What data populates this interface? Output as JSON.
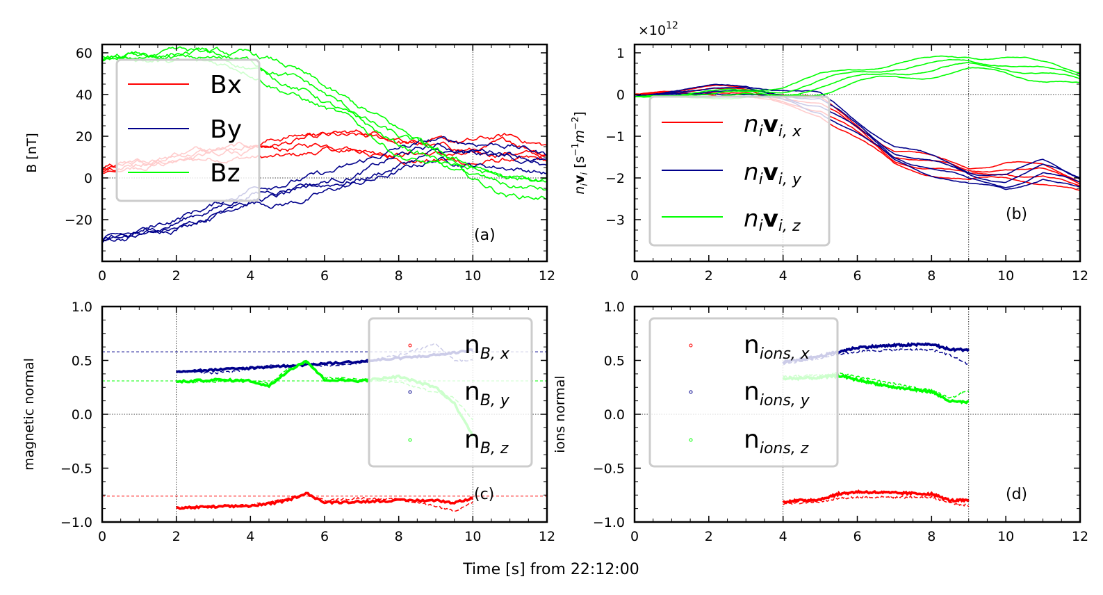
{
  "figure": {
    "xlabel": "Time [s] from 22:12:00",
    "colors": {
      "x": "#ff0000",
      "y": "#00008b",
      "z": "#00ff00"
    }
  },
  "chart_data": [
    {
      "id": "a",
      "type": "line",
      "panel_label": "(a)",
      "ylabel": "B [nT]",
      "xlim": [
        0,
        12
      ],
      "ylim": [
        -40,
        64
      ],
      "xticks": [
        0,
        2,
        4,
        6,
        8,
        10,
        12
      ],
      "yticks": [
        -20,
        0,
        20,
        40,
        60
      ],
      "xtick_labels": [
        "0",
        "2",
        "4",
        "6",
        "8",
        "10",
        "12"
      ],
      "ytick_labels": [
        "−20",
        "0",
        "20",
        "40",
        "60"
      ],
      "grid_x": [
        10
      ],
      "grid_y": [
        0
      ],
      "legend": {
        "position": "upper-left",
        "entries": [
          "Bx",
          "By",
          "Bz"
        ]
      },
      "series": [
        {
          "name": "Bx",
          "color": "#ff0000",
          "copies": 4,
          "x": [
            0,
            1,
            2,
            3,
            4,
            5,
            6,
            7,
            8,
            9,
            10,
            11,
            12
          ],
          "y": [
            3,
            7,
            10,
            12,
            14,
            15,
            17,
            17,
            15,
            13,
            12,
            14,
            11
          ]
        },
        {
          "name": "By",
          "color": "#00008b",
          "copies": 4,
          "x": [
            0,
            1,
            2,
            3,
            4,
            5,
            6,
            7,
            8,
            9,
            10,
            11,
            12
          ],
          "y": [
            -31,
            -27,
            -22,
            -16,
            -8,
            -6,
            -3,
            2,
            8,
            13,
            12,
            11,
            7
          ]
        },
        {
          "name": "Bz",
          "color": "#00ff00",
          "copies": 4,
          "x": [
            0,
            1,
            2,
            3,
            4,
            5,
            6,
            7,
            8,
            9,
            10,
            11,
            12
          ],
          "y": [
            57,
            58,
            58,
            57,
            55,
            48,
            38,
            28,
            17,
            10,
            3,
            -3,
            -5
          ]
        }
      ]
    },
    {
      "id": "b",
      "type": "line",
      "panel_label": "(b)",
      "ylabel": "n_i v_i [s⁻¹m⁻²]",
      "offset_text": "×10¹²",
      "xlim": [
        0,
        12
      ],
      "ylim": [
        -4,
        1.2
      ],
      "xticks": [
        0,
        2,
        4,
        6,
        8,
        10,
        12
      ],
      "yticks": [
        -3,
        -2,
        -1,
        0,
        1
      ],
      "xtick_labels": [
        "0",
        "2",
        "4",
        "6",
        "8",
        "10",
        "12"
      ],
      "ytick_labels": [
        "−3",
        "−2",
        "−1",
        "0",
        "1"
      ],
      "grid_x": [
        4,
        9
      ],
      "grid_y": [
        0
      ],
      "legend": {
        "position": "lower-left",
        "entries": [
          "nᵢvᵢ,ₓ",
          "nᵢvᵢ,ᵧ",
          "nᵢvᵢ,z"
        ]
      },
      "series": [
        {
          "name": "nᵢvᵢ,ₓ",
          "color": "#ff0000",
          "copies": 4,
          "x": [
            0,
            1,
            2,
            3,
            4,
            5,
            6,
            7,
            8,
            9,
            10,
            11,
            12
          ],
          "y": [
            0,
            0.05,
            0.1,
            0.05,
            -0.1,
            -0.3,
            -0.9,
            -1.5,
            -1.7,
            -1.9,
            -1.8,
            -1.9,
            -2.2
          ]
        },
        {
          "name": "nᵢvᵢ,ᵧ",
          "color": "#00008b",
          "copies": 4,
          "x": [
            0,
            1,
            2,
            3,
            4,
            5,
            6,
            7,
            8,
            9,
            10,
            11,
            12
          ],
          "y": [
            -0.05,
            0.05,
            0.12,
            0.1,
            0.0,
            -0.2,
            -0.8,
            -1.4,
            -1.7,
            -2.0,
            -2.1,
            -1.8,
            -2.1
          ]
        },
        {
          "name": "nᵢvᵢ,z",
          "color": "#00ff00",
          "copies": 4,
          "x": [
            0,
            1,
            2,
            3,
            4,
            5,
            6,
            7,
            8,
            9,
            10,
            11,
            12
          ],
          "y": [
            -0.05,
            -0.03,
            0.0,
            0.0,
            0.05,
            0.25,
            0.45,
            0.6,
            0.65,
            0.75,
            0.7,
            0.55,
            0.4
          ]
        }
      ]
    },
    {
      "id": "c",
      "type": "line",
      "panel_label": "(c)",
      "ylabel": "magnetic normal",
      "xlim": [
        0,
        12
      ],
      "ylim": [
        -1.0,
        1.0
      ],
      "xticks": [
        0,
        2,
        4,
        6,
        8,
        10,
        12
      ],
      "yticks": [
        -1.0,
        -0.5,
        0.0,
        0.5,
        1.0
      ],
      "xtick_labels": [
        "0",
        "2",
        "4",
        "6",
        "8",
        "10",
        "12"
      ],
      "ytick_labels": [
        "−1.0",
        "−0.5",
        "0.0",
        "0.5",
        "1.0"
      ],
      "grid_x": [
        2,
        10
      ],
      "grid_y": [
        0
      ],
      "reference_lines": [
        {
          "color": "#00008b",
          "y": 0.58
        },
        {
          "color": "#00ff00",
          "y": 0.31
        },
        {
          "color": "#ff0000",
          "y": -0.76
        }
      ],
      "legend": {
        "position": "upper-right",
        "entries": [
          "n_B,x",
          "n_B,y",
          "n_B,z"
        ]
      },
      "series": [
        {
          "name": "n_B,x",
          "color": "#ff0000",
          "x": [
            2,
            3,
            4,
            4.5,
            5,
            5.5,
            6,
            7,
            8,
            9,
            9.5,
            10
          ],
          "y": [
            -0.87,
            -0.86,
            -0.85,
            -0.83,
            -0.8,
            -0.73,
            -0.82,
            -0.81,
            -0.8,
            -0.8,
            -0.82,
            -0.78
          ],
          "y_dashed": [
            -0.87,
            -0.85,
            -0.84,
            -0.82,
            -0.78,
            -0.74,
            -0.8,
            -0.78,
            -0.79,
            -0.85,
            -0.9,
            -0.82
          ]
        },
        {
          "name": "n_B,y",
          "color": "#00008b",
          "x": [
            2,
            3,
            4,
            4.5,
            5,
            5.5,
            6,
            7,
            8,
            9,
            9.5,
            10
          ],
          "y": [
            0.4,
            0.41,
            0.43,
            0.44,
            0.45,
            0.46,
            0.47,
            0.49,
            0.52,
            0.55,
            0.57,
            0.6
          ],
          "y_dashed": [
            0.4,
            0.38,
            0.42,
            0.45,
            0.44,
            0.47,
            0.45,
            0.48,
            0.55,
            0.65,
            0.5,
            0.5
          ]
        },
        {
          "name": "n_B,z",
          "color": "#00ff00",
          "x": [
            2,
            3,
            4,
            4.5,
            5,
            5.5,
            6,
            7,
            8,
            9,
            9.5,
            10
          ],
          "y": [
            0.3,
            0.32,
            0.31,
            0.26,
            0.4,
            0.5,
            0.32,
            0.31,
            0.35,
            0.25,
            0.1,
            -0.2
          ],
          "y_dashed": [
            0.3,
            0.3,
            0.32,
            0.28,
            0.42,
            0.48,
            0.34,
            0.33,
            0.3,
            0.2,
            0.15,
            -0.05
          ]
        }
      ]
    },
    {
      "id": "d",
      "type": "line",
      "panel_label": "(d)",
      "ylabel": "ions normal",
      "xlim": [
        0,
        12
      ],
      "ylim": [
        -1.0,
        1.0
      ],
      "xticks": [
        0,
        2,
        4,
        6,
        8,
        10,
        12
      ],
      "yticks": [
        -1.0,
        -0.5,
        0.0,
        0.5,
        1.0
      ],
      "xtick_labels": [
        "0",
        "2",
        "4",
        "6",
        "8",
        "10",
        "12"
      ],
      "ytick_labels": [
        "−1.0",
        "−0.5",
        "0.0",
        "0.5",
        "1.0"
      ],
      "grid_x": [
        4,
        9
      ],
      "grid_y": [
        0
      ],
      "legend": {
        "position": "upper-left",
        "entries": [
          "n_ions,x",
          "n_ions,y",
          "n_ions,z"
        ]
      },
      "series": [
        {
          "name": "n_ions,x",
          "color": "#ff0000",
          "x": [
            4,
            5,
            5.5,
            6,
            7,
            8,
            8.5,
            9
          ],
          "y": [
            -0.81,
            -0.79,
            -0.74,
            -0.72,
            -0.73,
            -0.74,
            -0.8,
            -0.8
          ],
          "y_dashed": [
            -0.83,
            -0.81,
            -0.78,
            -0.77,
            -0.77,
            -0.77,
            -0.82,
            -0.85
          ]
        },
        {
          "name": "n_ions,y",
          "color": "#00008b",
          "x": [
            4,
            5,
            5.5,
            6,
            7,
            8,
            8.5,
            9
          ],
          "y": [
            0.48,
            0.54,
            0.58,
            0.62,
            0.64,
            0.65,
            0.6,
            0.6
          ],
          "y_dashed": [
            0.47,
            0.52,
            0.56,
            0.58,
            0.6,
            0.6,
            0.55,
            0.46
          ]
        },
        {
          "name": "n_ions,z",
          "color": "#00ff00",
          "x": [
            4,
            5,
            5.5,
            6,
            7,
            8,
            8.5,
            9
          ],
          "y": [
            0.33,
            0.34,
            0.36,
            0.32,
            0.25,
            0.21,
            0.12,
            0.11
          ],
          "y_dashed": [
            0.35,
            0.36,
            0.38,
            0.35,
            0.28,
            0.22,
            0.15,
            0.22
          ]
        }
      ]
    }
  ]
}
